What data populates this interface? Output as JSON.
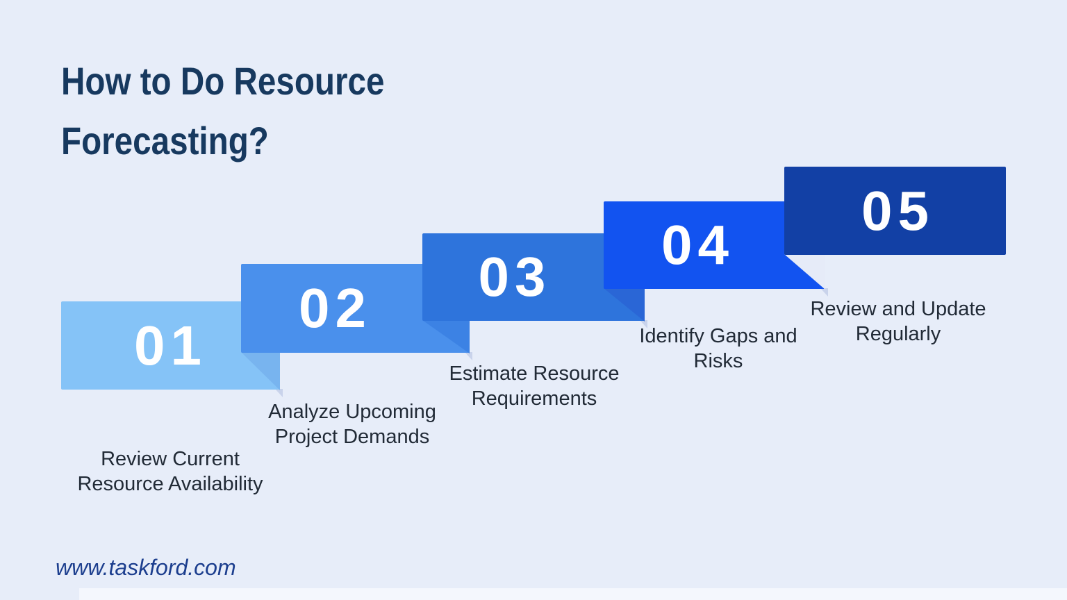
{
  "page": {
    "title_line1": "How to Do Resource",
    "title_line2": "Forecasting?",
    "website": "www.taskford.com",
    "colors": {
      "background": "#E7EDF9",
      "title": "#17395F",
      "label_text": "#212A36",
      "number_text": "#FFFFFF",
      "footer_text": "#1C3E8E"
    }
  },
  "steps": [
    {
      "number": "01",
      "label_line1": "Review Current",
      "label_line2": "Resource Availability",
      "color": "#85C3F7"
    },
    {
      "number": "02",
      "label_line1": "Analyze Upcoming",
      "label_line2": "Project Demands",
      "color": "#4A90EC"
    },
    {
      "number": "03",
      "label_line1": "Estimate Resource",
      "label_line2": "Requirements",
      "color": "#2E74DC"
    },
    {
      "number": "04",
      "label_line1": "Identify Gaps and",
      "label_line2": "Risks",
      "color": "#1253F0"
    },
    {
      "number": "05",
      "label_line1": "Review and Update",
      "label_line2": "Regularly",
      "color": "#1240A5"
    }
  ]
}
